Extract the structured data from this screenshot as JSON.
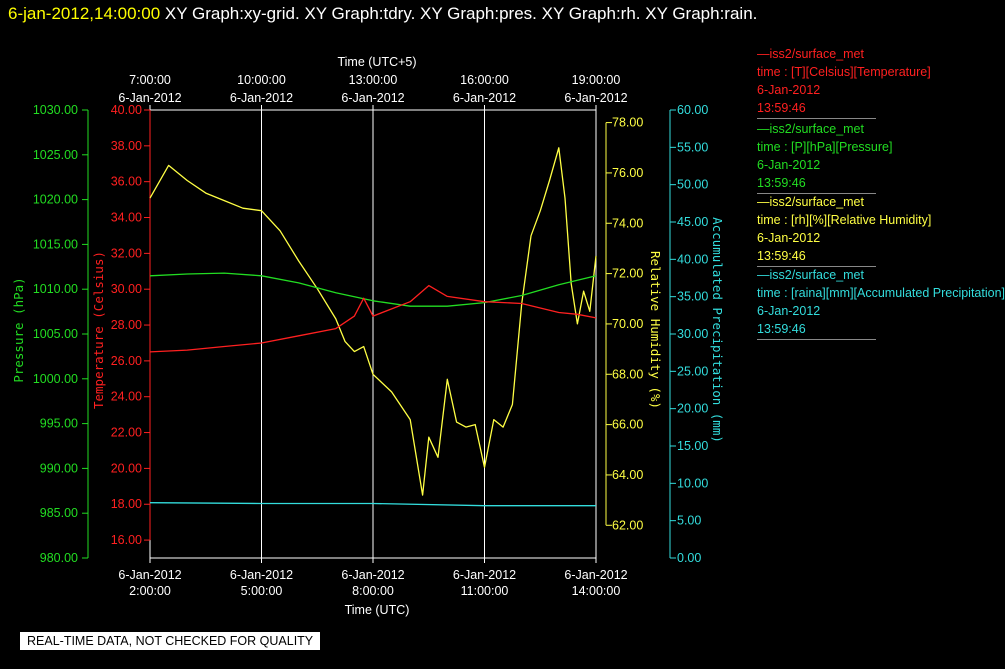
{
  "header": {
    "datetime": "6-jan-2012,14:00:00",
    "graphs": "XY Graph:xy-grid.  XY Graph:tdry.  XY Graph:pres.  XY Graph:rh.  XY Graph:rain."
  },
  "legend": [
    {
      "line1": "—iss2/surface_met",
      "line2": "time : [T][Celsius][Temperature]",
      "line3": "6-Jan-2012",
      "line4": "13:59:46",
      "color": "#ff2020"
    },
    {
      "line1": "—iss2/surface_met",
      "line2": "time : [P][hPa][Pressure]",
      "line3": "6-Jan-2012",
      "line4": "13:59:46",
      "color": "#22dd22"
    },
    {
      "line1": "—iss2/surface_met",
      "line2": "time : [rh][%][Relative Humidity]",
      "line3": "6-Jan-2012",
      "line4": "13:59:46",
      "color": "#ffff44"
    },
    {
      "line1": "—iss2/surface_met",
      "line2": "time : [raina][mm][Accumulated Precipitation]",
      "line3": "6-Jan-2012",
      "line4": "13:59:46",
      "color": "#33dddd"
    }
  ],
  "banner": "REAL-TIME DATA, NOT CHECKED FOR QUALITY",
  "chart_data": {
    "type": "line",
    "title_top_axis": "Time (UTC+5)",
    "xlabel": "Time (UTC)",
    "xlim": [
      "2012-01-06 02:00",
      "2012-01-06 14:00"
    ],
    "bottom_ticks": [
      {
        "t": "2012-01-06 02:00",
        "l1": "6-Jan-2012",
        "l2": "2:00:00"
      },
      {
        "t": "2012-01-06 05:00",
        "l1": "6-Jan-2012",
        "l2": "5:00:00"
      },
      {
        "t": "2012-01-06 08:00",
        "l1": "6-Jan-2012",
        "l2": "8:00:00"
      },
      {
        "t": "2012-01-06 11:00",
        "l1": "6-Jan-2012",
        "l2": "11:00:00"
      },
      {
        "t": "2012-01-06 14:00",
        "l1": "6-Jan-2012",
        "l2": "14:00:00"
      }
    ],
    "top_ticks": [
      {
        "t": "2012-01-06 02:00",
        "l1": "7:00:00",
        "l2": "6-Jan-2012"
      },
      {
        "t": "2012-01-06 05:00",
        "l1": "10:00:00",
        "l2": "6-Jan-2012"
      },
      {
        "t": "2012-01-06 08:00",
        "l1": "13:00:00",
        "l2": "6-Jan-2012"
      },
      {
        "t": "2012-01-06 11:00",
        "l1": "16:00:00",
        "l2": "6-Jan-2012"
      },
      {
        "t": "2012-01-06 14:00",
        "l1": "19:00:00",
        "l2": "6-Jan-2012"
      }
    ],
    "grid": true,
    "axes": {
      "pressure": {
        "label": "Pressure (hPa)",
        "color": "#22dd22",
        "ylim": [
          980,
          1030
        ],
        "ticks": [
          "980.00",
          "985.00",
          "990.00",
          "995.00",
          "1000.00",
          "1005.00",
          "1010.00",
          "1015.00",
          "1020.00",
          "1025.00",
          "1030.00"
        ]
      },
      "temperature": {
        "label": "Temperature (Celsius)",
        "color": "#ff2020",
        "ylim": [
          15,
          40
        ],
        "ticks": [
          "16.00",
          "18.00",
          "20.00",
          "22.00",
          "24.00",
          "26.00",
          "28.00",
          "30.00",
          "32.00",
          "34.00",
          "36.00",
          "38.00",
          "40.00"
        ]
      },
      "humidity": {
        "label": "Relative Humidity (%)",
        "color": "#ffff44",
        "ylim": [
          60.7,
          78.5
        ],
        "ticks": [
          "62.00",
          "64.00",
          "66.00",
          "68.00",
          "70.00",
          "72.00",
          "74.00",
          "76.00",
          "78.00"
        ]
      },
      "precip": {
        "label": "Accumulated Precipitation (mm)",
        "color": "#33dddd",
        "ylim": [
          0,
          60
        ],
        "ticks": [
          "0.00",
          "5.00",
          "10.00",
          "15.00",
          "20.00",
          "25.00",
          "30.00",
          "35.00",
          "40.00",
          "45.00",
          "50.00",
          "55.00",
          "60.00"
        ]
      }
    },
    "series": [
      {
        "name": "iss2/surface_met time : [T][Celsius][Temperature]",
        "axis": "temperature",
        "color": "#ff2020",
        "x": [
          "2012-01-06 02:00",
          "2012-01-06 03:00",
          "2012-01-06 04:00",
          "2012-01-06 05:00",
          "2012-01-06 06:00",
          "2012-01-06 07:00",
          "2012-01-06 07:30",
          "2012-01-06 07:45",
          "2012-01-06 08:00",
          "2012-01-06 09:00",
          "2012-01-06 09:30",
          "2012-01-06 10:00",
          "2012-01-06 11:00",
          "2012-01-06 12:00",
          "2012-01-06 13:00",
          "2012-01-06 13:30",
          "2012-01-06 14:00"
        ],
        "y": [
          26.5,
          26.6,
          26.8,
          27.0,
          27.4,
          27.8,
          28.5,
          29.5,
          28.5,
          29.3,
          30.2,
          29.6,
          29.3,
          29.2,
          28.7,
          28.6,
          28.4
        ]
      },
      {
        "name": "iss2/surface_met time : [P][hPa][Pressure]",
        "axis": "pressure",
        "color": "#22dd22",
        "x": [
          "2012-01-06 02:00",
          "2012-01-06 03:00",
          "2012-01-06 04:00",
          "2012-01-06 05:00",
          "2012-01-06 06:00",
          "2012-01-06 07:00",
          "2012-01-06 08:00",
          "2012-01-06 09:00",
          "2012-01-06 10:00",
          "2012-01-06 11:00",
          "2012-01-06 12:00",
          "2012-01-06 13:00",
          "2012-01-06 14:00"
        ],
        "y": [
          1011.5,
          1011.7,
          1011.8,
          1011.5,
          1010.7,
          1009.6,
          1008.7,
          1008.1,
          1008.1,
          1008.5,
          1009.3,
          1010.5,
          1011.5
        ]
      },
      {
        "name": "iss2/surface_met time : [rh][%][Relative Humidity]",
        "axis": "humidity",
        "color": "#ffff44",
        "x": [
          "2012-01-06 02:00",
          "2012-01-06 02:30",
          "2012-01-06 03:00",
          "2012-01-06 03:30",
          "2012-01-06 04:00",
          "2012-01-06 04:30",
          "2012-01-06 05:00",
          "2012-01-06 05:30",
          "2012-01-06 06:00",
          "2012-01-06 06:30",
          "2012-01-06 07:00",
          "2012-01-06 07:15",
          "2012-01-06 07:30",
          "2012-01-06 07:45",
          "2012-01-06 08:00",
          "2012-01-06 08:30",
          "2012-01-06 09:00",
          "2012-01-06 09:20",
          "2012-01-06 09:30",
          "2012-01-06 09:45",
          "2012-01-06 10:00",
          "2012-01-06 10:15",
          "2012-01-06 10:30",
          "2012-01-06 10:45",
          "2012-01-06 11:00",
          "2012-01-06 11:15",
          "2012-01-06 11:30",
          "2012-01-06 11:45",
          "2012-01-06 12:00",
          "2012-01-06 12:15",
          "2012-01-06 12:30",
          "2012-01-06 12:45",
          "2012-01-06 13:00",
          "2012-01-06 13:10",
          "2012-01-06 13:20",
          "2012-01-06 13:30",
          "2012-01-06 13:40",
          "2012-01-06 13:50",
          "2012-01-06 14:00"
        ],
        "y": [
          75.0,
          76.3,
          75.7,
          75.2,
          74.9,
          74.6,
          74.5,
          73.7,
          72.5,
          71.4,
          70.2,
          69.3,
          68.9,
          69.1,
          68.0,
          67.3,
          66.2,
          63.2,
          65.5,
          64.7,
          67.8,
          66.1,
          65.9,
          66.0,
          64.3,
          66.2,
          65.9,
          66.8,
          70.8,
          73.5,
          74.5,
          75.7,
          77.0,
          75.0,
          71.6,
          70.0,
          71.3,
          70.5,
          72.7
        ]
      },
      {
        "name": "iss2/surface_met time : [raina][mm][Accumulated Precipitation]",
        "axis": "precip",
        "color": "#33dddd",
        "x": [
          "2012-01-06 02:00",
          "2012-01-06 05:00",
          "2012-01-06 08:00",
          "2012-01-06 11:00",
          "2012-01-06 14:00"
        ],
        "y": [
          7.4,
          7.3,
          7.3,
          7.0,
          7.0
        ]
      }
    ]
  }
}
